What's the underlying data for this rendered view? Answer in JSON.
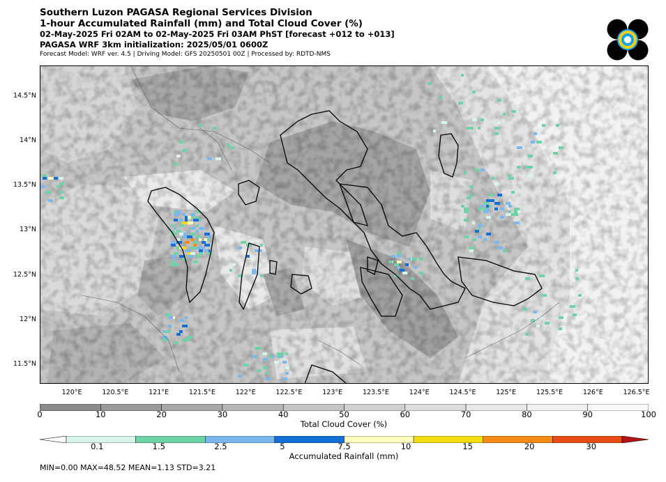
{
  "header": {
    "line1": "Southern Luzon PAGASA Regional Services Division",
    "line2": "1-hour Accumulated Rainfall (mm) and Total Cloud Cover (%)",
    "line3": "02-May-2025 Fri 02AM to 02-May-2025 Fri 03AM PhST [forecast +012 to +013]",
    "line4": "PAGASA WRF 3km initialization: 2025/05/01 0600Z",
    "line5": "Forecast Model: WRF ver. 4.5 | Driving Model: GFS 20250501 00Z | Processed by: RDTD-NMS"
  },
  "chart_data": {
    "type": "heatmap",
    "title": "1-hour Accumulated Rainfall (mm) and Total Cloud Cover (%)",
    "x_axis": {
      "ticks": [
        {
          "value": 120.0,
          "label": "120°E"
        },
        {
          "value": 120.5,
          "label": "120.5°E"
        },
        {
          "value": 121.0,
          "label": "121°E"
        },
        {
          "value": 121.5,
          "label": "121.5°E"
        },
        {
          "value": 122.0,
          "label": "122°E"
        },
        {
          "value": 122.5,
          "label": "122.5°E"
        },
        {
          "value": 123.0,
          "label": "123°E"
        },
        {
          "value": 123.5,
          "label": "123.5°E"
        },
        {
          "value": 124.0,
          "label": "124°E"
        },
        {
          "value": 124.5,
          "label": "124.5°E"
        },
        {
          "value": 125.0,
          "label": "125°E"
        },
        {
          "value": 125.5,
          "label": "125.5°E"
        },
        {
          "value": 126.0,
          "label": "126°E"
        },
        {
          "value": 126.5,
          "label": "126.5°E"
        }
      ],
      "range": [
        119.63,
        126.64
      ]
    },
    "y_axis": {
      "ticks": [
        {
          "value": 11.5,
          "label": "11.5°N"
        },
        {
          "value": 12.0,
          "label": "12°N"
        },
        {
          "value": 12.5,
          "label": "12.5°N"
        },
        {
          "value": 13.0,
          "label": "13°N"
        },
        {
          "value": 13.5,
          "label": "13.5°N"
        },
        {
          "value": 14.0,
          "label": "14°N"
        },
        {
          "value": 14.5,
          "label": "14.5°N"
        }
      ],
      "range": [
        11.29,
        14.85
      ]
    },
    "cloud_colorbar": {
      "label": "Total Cloud Cover (%)",
      "ticks": [
        0,
        10,
        20,
        30,
        40,
        50,
        60,
        70,
        80,
        90,
        100
      ],
      "colors": [
        "#8c8c8c",
        "#9a9a9a",
        "#a8a8a8",
        "#b6b6b6",
        "#c4c4c4",
        "#d1d1d1",
        "#dddddd",
        "#e8e8e8",
        "#f1f1f1",
        "#f9f9f9"
      ]
    },
    "rain_colorbar": {
      "label": "Accumulated Rainfall (mm)",
      "ticks": [
        "0.1",
        "1.5",
        "2.5",
        "5",
        "7.5",
        "10",
        "15",
        "20",
        "30"
      ],
      "colors": [
        "#d8f5ec",
        "#6fd3a8",
        "#7ab8ee",
        "#1470d6",
        "#ffffc0",
        "#f2dd12",
        "#f58a14",
        "#e84c14",
        "#b41414"
      ]
    },
    "stats": {
      "min": "0.00",
      "max": "48.52",
      "mean": "1.13",
      "std": "3.21"
    }
  },
  "stats_text": "MIN=0.00   MAX=48.52   MEAN=1.13   STD=3.21"
}
